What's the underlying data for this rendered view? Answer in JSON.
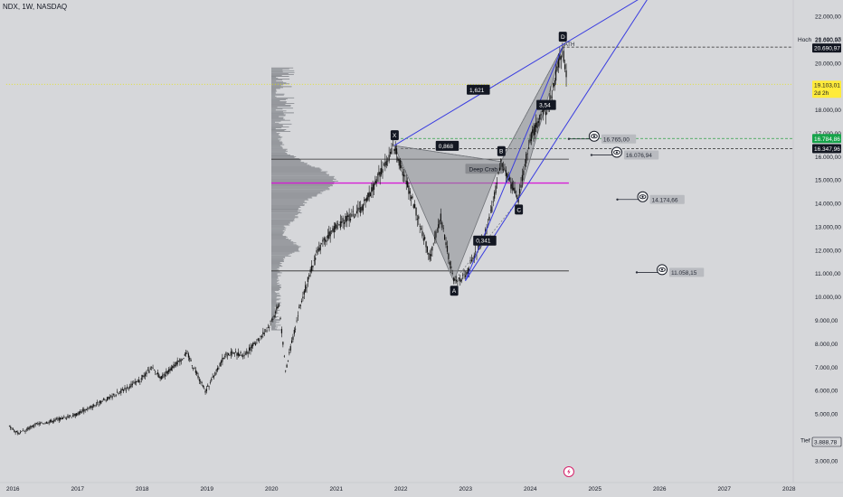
{
  "title": "NDX, 1W, NASDAQ",
  "colors": {
    "background": "#d6d7da",
    "candle": "#111111",
    "pattern_fill": "#8a8c91",
    "pattern_stroke": "#6f7277",
    "trend_line": "#3a3de0",
    "magenta_line": "#d61fd6",
    "level_line": "#2a2a2a",
    "green_dashed": "#2ea043",
    "yellow_dotted": "#e6e600",
    "volume_profile": "#8c8f94",
    "label_dark": "#131722",
    "label_green": "#16a34a",
    "label_yellow": "#ffeb3b",
    "target_label_bg": "#b9bbc0"
  },
  "price_axis": {
    "ticks": [
      "22.000,00",
      "21.000,00",
      "20.000,00",
      "18.000,00",
      "17.000,00",
      "16.000,00",
      "15.000,00",
      "14.000,00",
      "13.000,00",
      "12.000,00",
      "11.000,00",
      "10.000,00",
      "9.000,00",
      "8.000,00",
      "7.000,00",
      "6.000,00",
      "5.000,00",
      "3.000,00"
    ],
    "tick_values": [
      22000,
      21000,
      20000,
      18000,
      17000,
      16000,
      15000,
      14000,
      13000,
      12000,
      11000,
      10000,
      9000,
      8000,
      7000,
      6000,
      5000,
      3000
    ],
    "high_label": "Hoch",
    "high_value": "20.690,97",
    "ath_value": "20.690,97",
    "current_price": "19.103,01",
    "countdown": "2d 2h",
    "green_level": "16.784,86",
    "black_level": "16.347,96",
    "low_label": "Tief",
    "low_value": "3.888,78"
  },
  "time_axis": {
    "labels": [
      "2016",
      "2017",
      "2018",
      "2019",
      "2020",
      "2021",
      "2022",
      "2023",
      "2024",
      "2025",
      "2026",
      "2027",
      "2028"
    ]
  },
  "chart_data": {
    "type": "candlestick",
    "symbol": "NDX",
    "timeframe": "1W",
    "exchange": "NASDAQ",
    "ylim": [
      2400,
      22600
    ],
    "x_years": [
      2016,
      2028
    ],
    "grid": false,
    "price_path": [
      {
        "t": 2015.95,
        "v": 4450
      },
      {
        "t": 2016.1,
        "v": 4150
      },
      {
        "t": 2016.35,
        "v": 4550
      },
      {
        "t": 2016.6,
        "v": 4700
      },
      {
        "t": 2016.95,
        "v": 4950
      },
      {
        "t": 2017.5,
        "v": 5700
      },
      {
        "t": 2017.95,
        "v": 6400
      },
      {
        "t": 2018.15,
        "v": 6950
      },
      {
        "t": 2018.3,
        "v": 6550
      },
      {
        "t": 2018.7,
        "v": 7600
      },
      {
        "t": 2018.98,
        "v": 5950
      },
      {
        "t": 2019.3,
        "v": 7600
      },
      {
        "t": 2019.6,
        "v": 7550
      },
      {
        "t": 2019.95,
        "v": 8700
      },
      {
        "t": 2020.12,
        "v": 9700
      },
      {
        "t": 2020.22,
        "v": 6850
      },
      {
        "t": 2020.45,
        "v": 9700
      },
      {
        "t": 2020.7,
        "v": 11900
      },
      {
        "t": 2020.95,
        "v": 12900
      },
      {
        "t": 2021.4,
        "v": 13800
      },
      {
        "t": 2021.7,
        "v": 15400
      },
      {
        "t": 2021.9,
        "v": 16450
      },
      {
        "t": 2022.2,
        "v": 14000
      },
      {
        "t": 2022.45,
        "v": 11700
      },
      {
        "t": 2022.62,
        "v": 13400
      },
      {
        "t": 2022.82,
        "v": 10700
      },
      {
        "t": 2023.0,
        "v": 10850
      },
      {
        "t": 2023.35,
        "v": 13000
      },
      {
        "t": 2023.55,
        "v": 15700
      },
      {
        "t": 2023.82,
        "v": 14200
      },
      {
        "t": 2024.0,
        "v": 16800
      },
      {
        "t": 2024.3,
        "v": 18300
      },
      {
        "t": 2024.5,
        "v": 20690
      },
      {
        "t": 2024.58,
        "v": 19103
      }
    ],
    "harmonic_pattern": {
      "name": "Deep Crab",
      "points": [
        {
          "label": "X",
          "t": 2021.9,
          "v": 16480
        },
        {
          "label": "A",
          "t": 2022.82,
          "v": 10680
        },
        {
          "label": "B",
          "t": 2023.55,
          "v": 15800
        },
        {
          "label": "C",
          "t": 2023.82,
          "v": 14150
        },
        {
          "label": "D",
          "t": 2024.5,
          "v": 20690
        }
      ],
      "ratios": [
        {
          "text": "0,868",
          "t": 2022.72,
          "v": 16450
        },
        {
          "text": "0,341",
          "t": 2023.3,
          "v": 12400
        },
        {
          "text": "3,54",
          "t": 2024.25,
          "v": 18200
        },
        {
          "text": "1,621",
          "t": 2023.2,
          "v": 18850
        }
      ]
    },
    "trend_lines": [
      {
        "from": {
          "t": 2021.9,
          "v": 16480
        },
        "to": {
          "t": 2025.9,
          "v": 23100
        }
      },
      {
        "from": {
          "t": 2023.0,
          "v": 10700
        },
        "to": {
          "t": 2025.9,
          "v": 23100
        }
      },
      {
        "from": {
          "t": 2023.0,
          "v": 10700
        },
        "to": {
          "t": 2024.5,
          "v": 20690
        }
      }
    ],
    "horizontal_levels": [
      {
        "v": 15900,
        "t_start": 2020.0,
        "t_end": 2024.6,
        "style": "solid",
        "color": "black"
      },
      {
        "v": 14880,
        "t_start": 2020.0,
        "t_end": 2024.6,
        "style": "solid",
        "color": "magenta"
      },
      {
        "v": 11120,
        "t_start": 2020.0,
        "t_end": 2024.6,
        "style": "solid",
        "color": "black"
      },
      {
        "v": 20690,
        "t_start": 2024.5,
        "t_end": 2028.5,
        "style": "dashed",
        "color": "black"
      },
      {
        "v": 16784.86,
        "t_start": 2022.0,
        "t_end": 2028.5,
        "style": "dashed",
        "color": "green"
      },
      {
        "v": 16347.96,
        "t_start": 2022.0,
        "t_end": 2028.5,
        "style": "dashed",
        "color": "black"
      },
      {
        "v": 19103.01,
        "t_start": 2015.9,
        "t_end": 2028.5,
        "style": "dotted",
        "color": "yellow"
      }
    ],
    "targets": [
      {
        "value": "16.765,00",
        "v": 16765,
        "t": 2024.6
      },
      {
        "value": "16.076,94",
        "v": 16076.94,
        "t": 2024.95
      },
      {
        "value": "14.174,66",
        "v": 14174.66,
        "t": 2025.35
      },
      {
        "value": "11.058,15",
        "v": 11058.15,
        "t": 2025.65
      }
    ],
    "ath_label": "ATH",
    "volume_profile": {
      "price_from": 8600,
      "price_to": 19800,
      "anchor_t": 2020.0,
      "peak_price": 14950
    }
  }
}
